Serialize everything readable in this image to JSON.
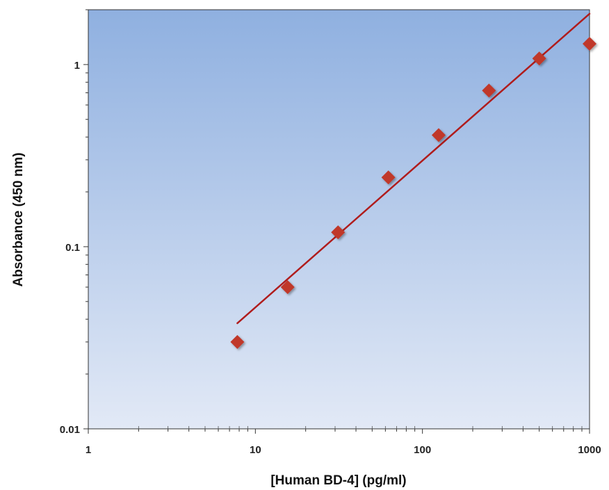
{
  "chart_data": {
    "type": "scatter",
    "title": "",
    "xlabel": "[Human BD-4] (pg/ml)",
    "ylabel": "Absorbance (450 nm)",
    "xscale": "log",
    "yscale": "log",
    "xlim": [
      1,
      1000
    ],
    "ylim": [
      0.01,
      2
    ],
    "x_ticks": [
      {
        "value": 1,
        "label": "1"
      },
      {
        "value": 10,
        "label": "10"
      },
      {
        "value": 100,
        "label": "100"
      },
      {
        "value": 1000,
        "label": "1000"
      }
    ],
    "y_ticks": [
      {
        "value": 0.01,
        "label": "0.01"
      },
      {
        "value": 0.1,
        "label": "0.1"
      },
      {
        "value": 1,
        "label": "1"
      }
    ],
    "grid": false,
    "legend": "none",
    "series": [
      {
        "marker": "diamond",
        "color": "#c0392b",
        "x": [
          7.8,
          15.6,
          31.25,
          62.5,
          125,
          250,
          500,
          1000
        ],
        "y": [
          0.03,
          0.06,
          0.12,
          0.24,
          0.41,
          0.72,
          1.08,
          1.3
        ]
      }
    ],
    "fit_line": {
      "color": "#b01c1c",
      "x": [
        7.8,
        1000
      ],
      "y": [
        0.038,
        1.9
      ]
    },
    "background_gradient": [
      "#8fb0e0",
      "#e2e9f6"
    ]
  }
}
